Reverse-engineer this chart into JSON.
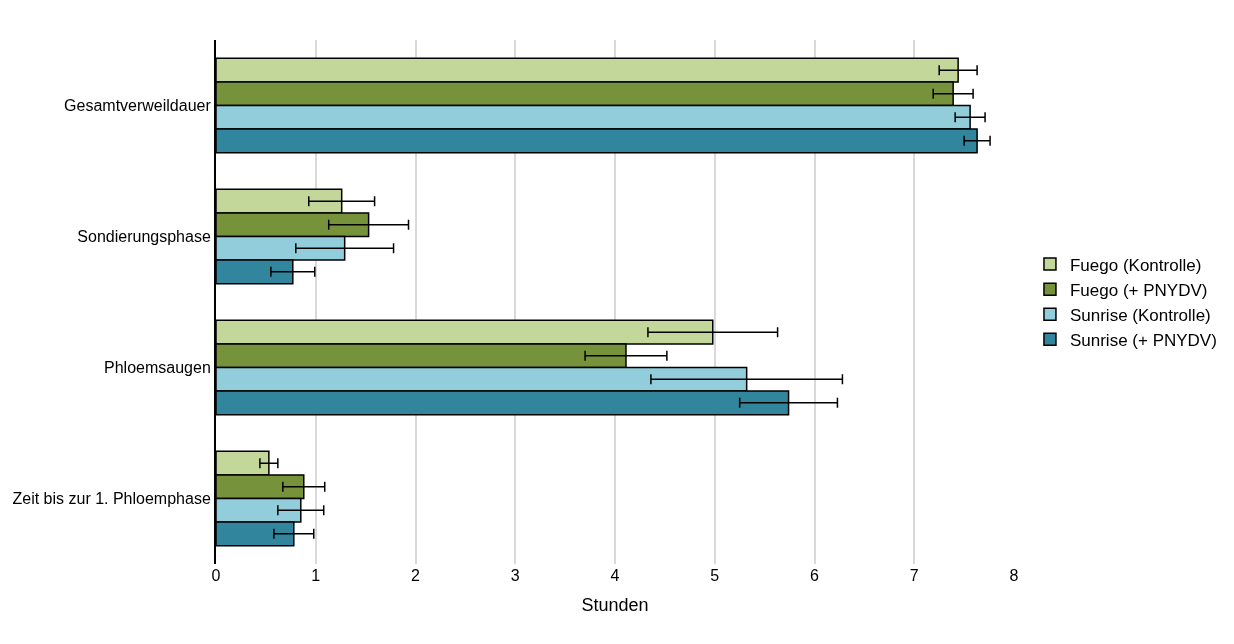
{
  "chart_data": {
    "type": "bar",
    "orientation": "horizontal",
    "xlabel": "Stunden",
    "categories": [
      "Gesamtverweildauer",
      "Sondierungsphase",
      "Phloemsaugen",
      "Zeit bis zur 1. Phloemphase"
    ],
    "series": [
      {
        "name": "Fuego (Kontrolle)",
        "color": "#c4d79b",
        "values": [
          7.44,
          1.26,
          4.98,
          0.53
        ],
        "errors": [
          0.19,
          0.33,
          0.65,
          0.09
        ]
      },
      {
        "name": "Fuego (+ PNYDV)",
        "color": "#76933c",
        "values": [
          7.39,
          1.53,
          4.11,
          0.88
        ],
        "errors": [
          0.2,
          0.4,
          0.41,
          0.21
        ]
      },
      {
        "name": "Sunrise (Kontrolle)",
        "color": "#92cddc",
        "values": [
          7.56,
          1.29,
          5.32,
          0.85
        ],
        "errors": [
          0.15,
          0.49,
          0.96,
          0.23
        ]
      },
      {
        "name": "Sunrise (+ PNYDV)",
        "color": "#31859c",
        "values": [
          7.63,
          0.77,
          5.74,
          0.78
        ],
        "errors": [
          0.13,
          0.22,
          0.49,
          0.2
        ]
      }
    ],
    "xlim": [
      0,
      8
    ],
    "xticks": [
      0,
      1,
      2,
      3,
      4,
      5,
      6,
      7,
      8
    ],
    "grid": "x",
    "legend": "right"
  }
}
